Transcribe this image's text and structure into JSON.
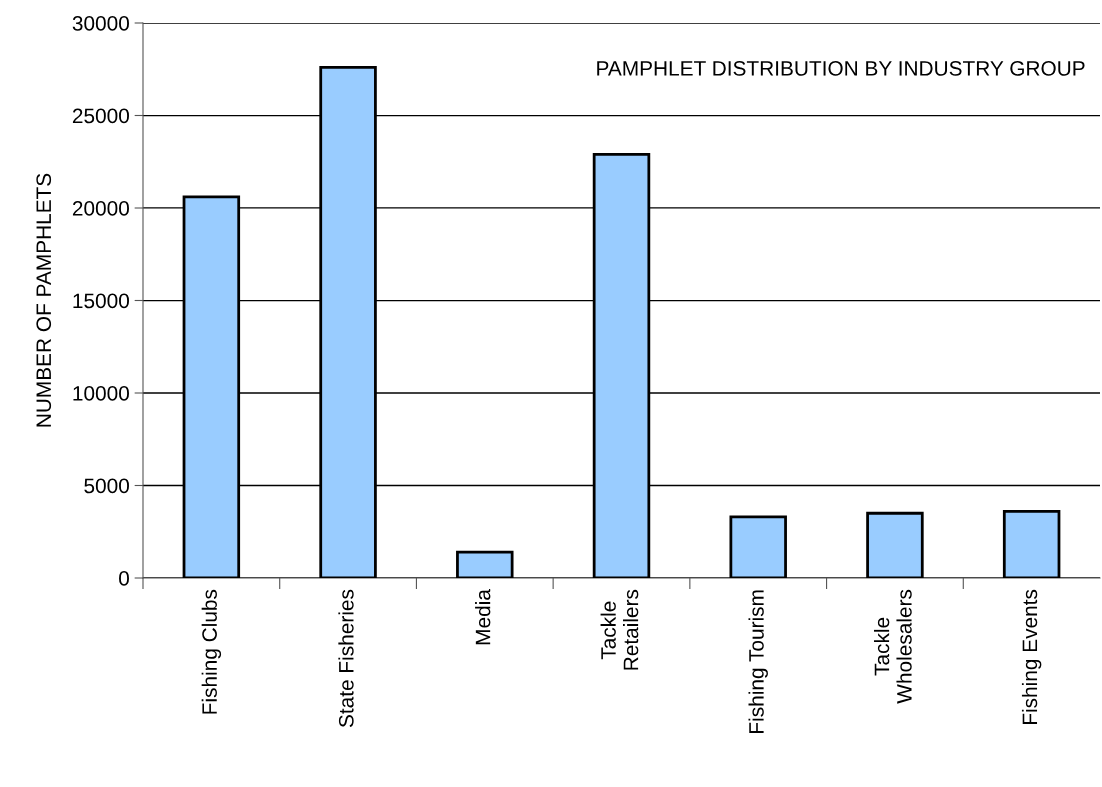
{
  "chart_data": {
    "type": "bar",
    "title": "PAMPHLET DISTRIBUTION BY INDUSTRY GROUP",
    "ylabel": "NUMBER OF PAMPHLETS",
    "categories": [
      "Fishing Clubs",
      "State Fisheries",
      "Media",
      "Tackle\nRetailers",
      "Fishing Tourism",
      "Tackle\nWholesalers",
      "Fishing Events"
    ],
    "values": [
      20600,
      27600,
      1400,
      22900,
      3300,
      3500,
      3600
    ],
    "color": "#99ccff",
    "ylim": [
      0,
      30000
    ],
    "yticks": [
      0,
      5000,
      10000,
      15000,
      20000,
      25000,
      30000
    ],
    "grid": "y"
  }
}
